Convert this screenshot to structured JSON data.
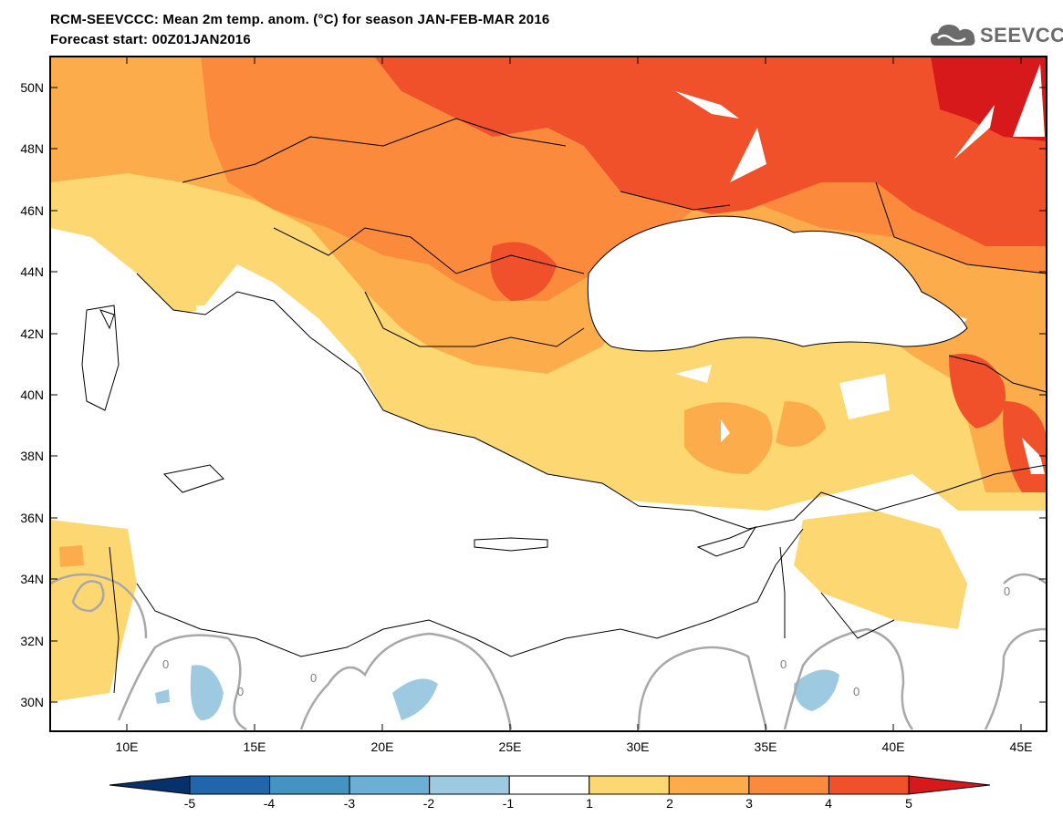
{
  "header": {
    "title_line1": "RCM-SEEVCCC: Mean 2m temp. anom. (°C) for season JAN-FEB-MAR 2016",
    "title_line2": "Forecast start: 00Z01JAN2016",
    "logo_text": "SEEVCCC",
    "logo_icon": "cloud-icon"
  },
  "map": {
    "type": "filled-contour-map",
    "region": "Eastern Mediterranean / Southeastern Europe",
    "lon_range": [
      7,
      46
    ],
    "lat_range": [
      29,
      51
    ],
    "lat_ticks": [
      "50N",
      "48N",
      "46N",
      "44N",
      "42N",
      "40N",
      "38N",
      "36N",
      "34N",
      "32N",
      "30N"
    ],
    "lon_ticks": [
      "10E",
      "15E",
      "20E",
      "25E",
      "30E",
      "35E",
      "40E",
      "45E"
    ],
    "contour_labels": [
      "0",
      "0",
      "0",
      "0",
      "0",
      "0"
    ]
  },
  "colorbar": {
    "labels": [
      "-5",
      "-4",
      "-3",
      "-2",
      "-1",
      "1",
      "2",
      "3",
      "4",
      "5"
    ],
    "colors": [
      "#08306b",
      "#2166ac",
      "#4393c3",
      "#6baed6",
      "#9ecae1",
      "#ffffff",
      "#fdd872",
      "#fcac4a",
      "#fc8a3c",
      "#f0502a",
      "#d7191c"
    ]
  }
}
